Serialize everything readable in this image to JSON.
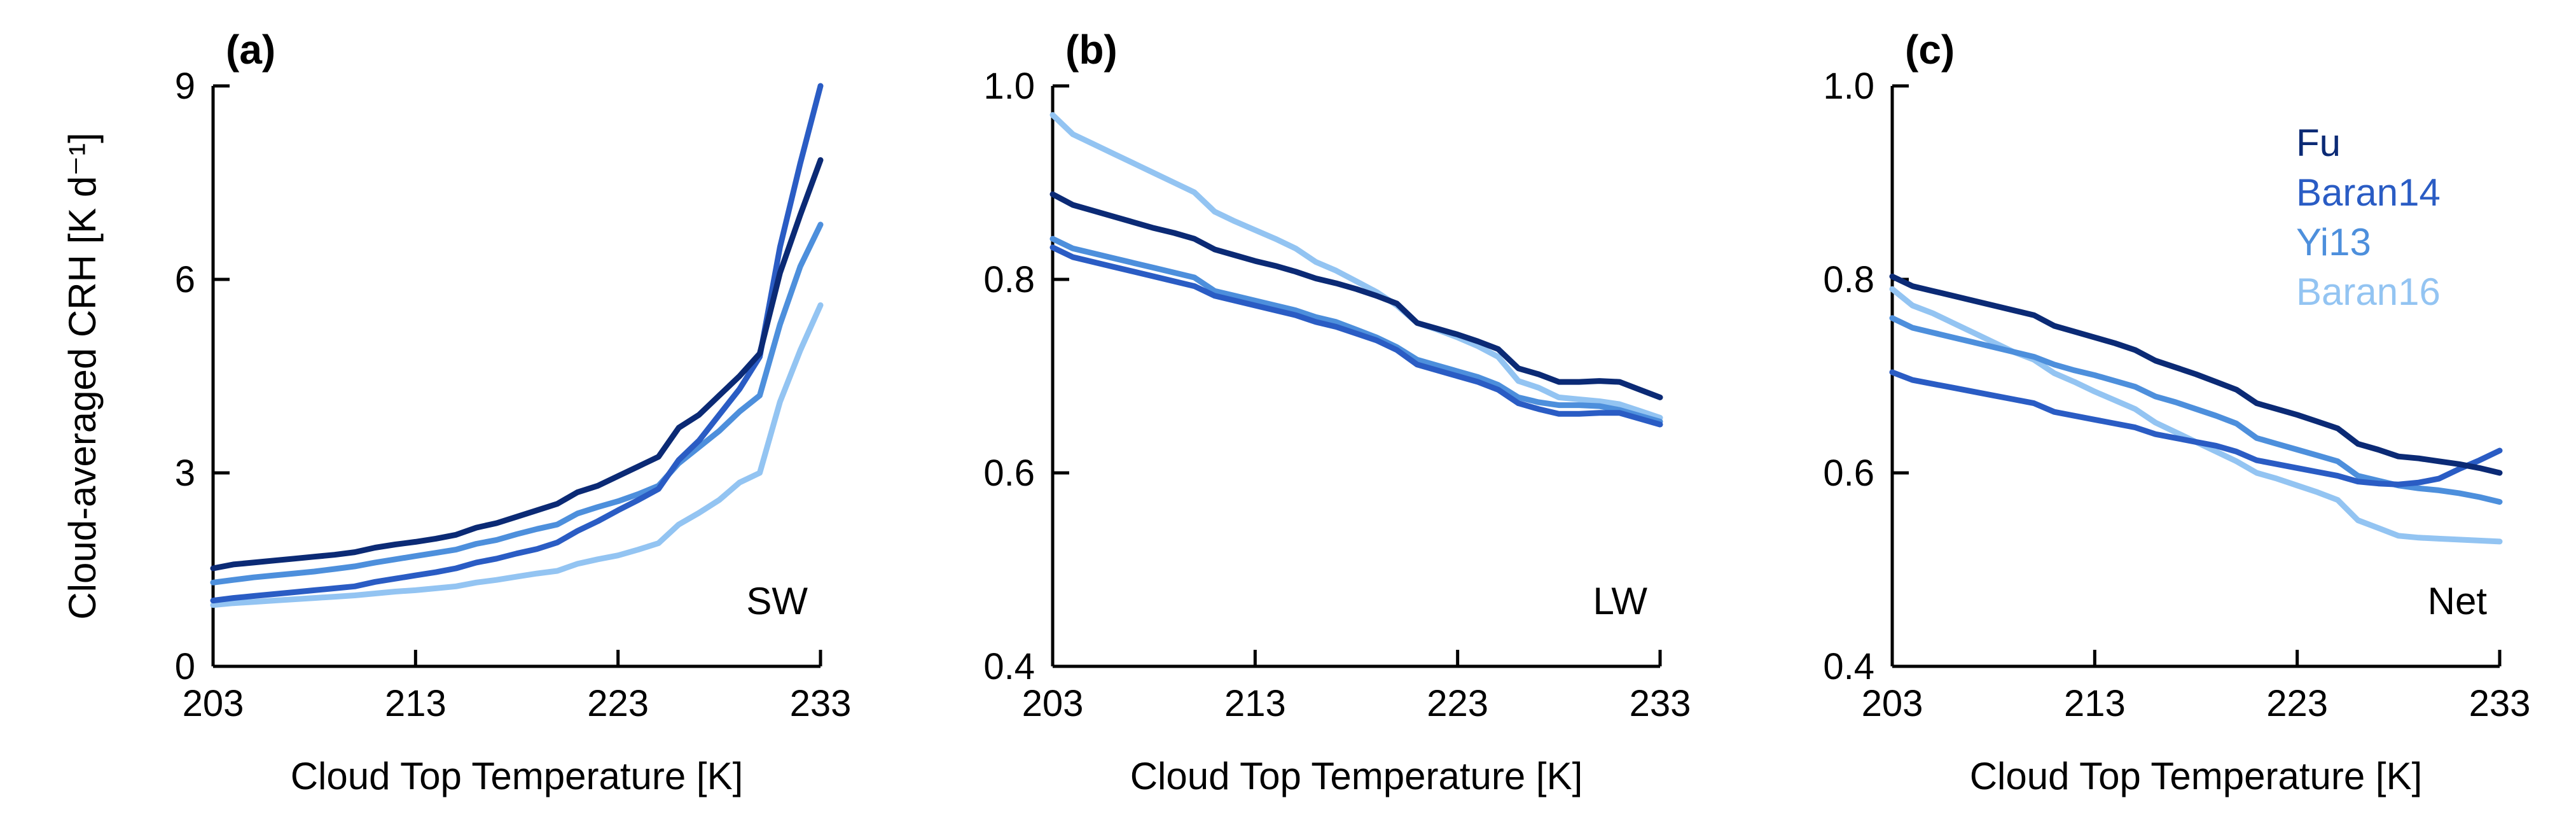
{
  "colors": {
    "Fu": "#0b2a75",
    "Baran14": "#2a5cc4",
    "Yi13": "#4d8fdc",
    "Baran16": "#93c4f2"
  },
  "chart_data": [
    {
      "type": "line",
      "panel_label": "(a)",
      "tag": "SW",
      "xlabel": "Cloud Top Temperature [K]",
      "ylabel": "Cloud-averaged CRH [K d⁻¹]",
      "xlim": [
        203,
        233
      ],
      "ylim": [
        0,
        9
      ],
      "xticks": [
        203,
        213,
        223,
        233
      ],
      "xtick_labels": [
        "203",
        "213",
        "223",
        "233"
      ],
      "yticks": [
        0,
        3,
        6,
        9
      ],
      "ytick_labels": [
        "0",
        "3",
        "6",
        "9"
      ],
      "x": [
        203,
        204,
        205,
        206,
        207,
        208,
        209,
        210,
        211,
        212,
        213,
        214,
        215,
        216,
        217,
        218,
        219,
        220,
        221,
        222,
        223,
        224,
        225,
        226,
        227,
        228,
        229,
        230,
        231,
        232,
        233
      ],
      "series": [
        {
          "name": "Fu",
          "values": [
            1.52,
            1.58,
            1.61,
            1.64,
            1.67,
            1.7,
            1.73,
            1.77,
            1.84,
            1.89,
            1.93,
            1.98,
            2.04,
            2.15,
            2.22,
            2.32,
            2.42,
            2.52,
            2.7,
            2.8,
            2.95,
            3.1,
            3.25,
            3.7,
            3.9,
            4.2,
            4.5,
            4.85,
            6.1,
            7.0,
            7.85
          ]
        },
        {
          "name": "Baran14",
          "values": [
            1.02,
            1.06,
            1.09,
            1.12,
            1.15,
            1.18,
            1.21,
            1.24,
            1.31,
            1.36,
            1.41,
            1.46,
            1.52,
            1.61,
            1.67,
            1.75,
            1.82,
            1.92,
            2.1,
            2.25,
            2.42,
            2.58,
            2.75,
            3.2,
            3.5,
            3.9,
            4.3,
            4.8,
            6.5,
            7.8,
            9.0
          ]
        },
        {
          "name": "Yi13",
          "values": [
            1.3,
            1.34,
            1.38,
            1.41,
            1.44,
            1.47,
            1.51,
            1.55,
            1.61,
            1.66,
            1.71,
            1.76,
            1.81,
            1.9,
            1.96,
            2.05,
            2.13,
            2.2,
            2.37,
            2.47,
            2.56,
            2.67,
            2.8,
            3.15,
            3.4,
            3.65,
            3.95,
            4.2,
            5.3,
            6.2,
            6.85
          ]
        },
        {
          "name": "Baran16",
          "values": [
            0.95,
            0.98,
            1.0,
            1.02,
            1.04,
            1.06,
            1.08,
            1.1,
            1.13,
            1.16,
            1.18,
            1.21,
            1.24,
            1.3,
            1.34,
            1.39,
            1.44,
            1.48,
            1.59,
            1.66,
            1.72,
            1.81,
            1.91,
            2.2,
            2.38,
            2.58,
            2.85,
            3.0,
            4.1,
            4.9,
            5.6
          ]
        }
      ]
    },
    {
      "type": "line",
      "panel_label": "(b)",
      "tag": "LW",
      "xlabel": "Cloud Top Temperature [K]",
      "ylabel": "",
      "xlim": [
        203,
        233
      ],
      "ylim": [
        0.4,
        1.0
      ],
      "xticks": [
        203,
        213,
        223,
        233
      ],
      "xtick_labels": [
        "203",
        "213",
        "223",
        "233"
      ],
      "yticks": [
        0.4,
        0.6,
        0.8,
        1.0
      ],
      "ytick_labels": [
        "0.4",
        "0.6",
        "0.8",
        "1.0"
      ],
      "x": [
        203,
        204,
        205,
        206,
        207,
        208,
        209,
        210,
        211,
        212,
        213,
        214,
        215,
        216,
        217,
        218,
        219,
        220,
        221,
        222,
        223,
        224,
        225,
        226,
        227,
        228,
        229,
        230,
        231,
        232,
        233
      ],
      "series": [
        {
          "name": "Fu",
          "values": [
            0.888,
            0.877,
            0.871,
            0.865,
            0.859,
            0.853,
            0.848,
            0.842,
            0.831,
            0.825,
            0.819,
            0.814,
            0.808,
            0.801,
            0.796,
            0.79,
            0.783,
            0.775,
            0.755,
            0.749,
            0.743,
            0.736,
            0.728,
            0.708,
            0.702,
            0.694,
            0.694,
            0.695,
            0.694,
            0.686,
            0.678
          ]
        },
        {
          "name": "Baran14",
          "values": [
            0.833,
            0.823,
            0.818,
            0.813,
            0.808,
            0.803,
            0.798,
            0.793,
            0.783,
            0.778,
            0.773,
            0.768,
            0.763,
            0.756,
            0.751,
            0.744,
            0.737,
            0.727,
            0.712,
            0.706,
            0.7,
            0.694,
            0.686,
            0.672,
            0.666,
            0.661,
            0.661,
            0.662,
            0.662,
            0.656,
            0.65
          ]
        },
        {
          "name": "Yi13",
          "values": [
            0.842,
            0.832,
            0.827,
            0.822,
            0.817,
            0.812,
            0.807,
            0.802,
            0.788,
            0.783,
            0.778,
            0.773,
            0.768,
            0.761,
            0.756,
            0.748,
            0.74,
            0.73,
            0.717,
            0.711,
            0.705,
            0.699,
            0.691,
            0.678,
            0.673,
            0.67,
            0.67,
            0.669,
            0.665,
            0.659,
            0.653
          ]
        },
        {
          "name": "Baran16",
          "values": [
            0.97,
            0.95,
            0.94,
            0.93,
            0.92,
            0.91,
            0.9,
            0.89,
            0.87,
            0.86,
            0.851,
            0.842,
            0.832,
            0.818,
            0.809,
            0.798,
            0.787,
            0.773,
            0.755,
            0.748,
            0.74,
            0.731,
            0.72,
            0.695,
            0.688,
            0.678,
            0.676,
            0.674,
            0.671,
            0.664,
            0.657
          ]
        }
      ]
    },
    {
      "type": "line",
      "panel_label": "(c)",
      "tag": "Net",
      "xlabel": "Cloud Top Temperature [K]",
      "ylabel": "",
      "xlim": [
        203,
        233
      ],
      "ylim": [
        0.4,
        1.0
      ],
      "xticks": [
        203,
        213,
        223,
        233
      ],
      "xtick_labels": [
        "203",
        "213",
        "223",
        "233"
      ],
      "yticks": [
        0.4,
        0.6,
        0.8,
        1.0
      ],
      "ytick_labels": [
        "0.4",
        "0.6",
        "0.8",
        "1.0"
      ],
      "legend": [
        "Fu",
        "Baran14",
        "Yi13",
        "Baran16"
      ],
      "x": [
        203,
        204,
        205,
        206,
        207,
        208,
        209,
        210,
        211,
        212,
        213,
        214,
        215,
        216,
        217,
        218,
        219,
        220,
        221,
        222,
        223,
        224,
        225,
        226,
        227,
        228,
        229,
        230,
        231,
        232,
        233
      ],
      "series": [
        {
          "name": "Fu",
          "values": [
            0.803,
            0.793,
            0.788,
            0.783,
            0.778,
            0.773,
            0.768,
            0.763,
            0.752,
            0.746,
            0.74,
            0.734,
            0.727,
            0.716,
            0.709,
            0.702,
            0.694,
            0.686,
            0.672,
            0.666,
            0.66,
            0.653,
            0.646,
            0.63,
            0.624,
            0.617,
            0.615,
            0.612,
            0.609,
            0.605,
            0.6
          ]
        },
        {
          "name": "Baran14",
          "values": [
            0.704,
            0.696,
            0.692,
            0.688,
            0.684,
            0.68,
            0.676,
            0.672,
            0.663,
            0.659,
            0.655,
            0.651,
            0.647,
            0.64,
            0.636,
            0.632,
            0.628,
            0.622,
            0.613,
            0.609,
            0.605,
            0.601,
            0.597,
            0.591,
            0.589,
            0.588,
            0.59,
            0.594,
            0.604,
            0.613,
            0.623
          ]
        },
        {
          "name": "Yi13",
          "values": [
            0.76,
            0.75,
            0.745,
            0.74,
            0.735,
            0.73,
            0.725,
            0.72,
            0.712,
            0.706,
            0.701,
            0.695,
            0.689,
            0.679,
            0.673,
            0.666,
            0.659,
            0.651,
            0.636,
            0.63,
            0.624,
            0.618,
            0.612,
            0.597,
            0.592,
            0.587,
            0.584,
            0.582,
            0.579,
            0.575,
            0.57
          ]
        },
        {
          "name": "Baran16",
          "values": [
            0.79,
            0.773,
            0.765,
            0.755,
            0.745,
            0.735,
            0.725,
            0.717,
            0.703,
            0.694,
            0.684,
            0.675,
            0.666,
            0.652,
            0.642,
            0.632,
            0.622,
            0.612,
            0.6,
            0.594,
            0.587,
            0.58,
            0.572,
            0.551,
            0.543,
            0.535,
            0.533,
            0.532,
            0.531,
            0.53,
            0.529
          ]
        }
      ]
    }
  ]
}
